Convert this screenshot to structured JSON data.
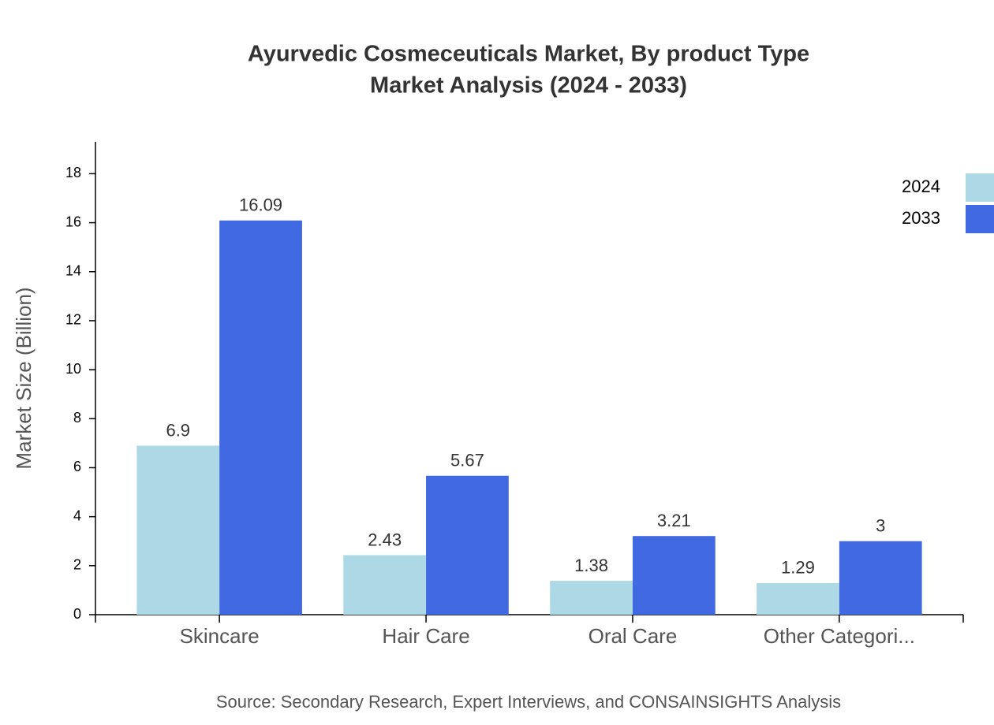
{
  "chart_data": {
    "type": "bar",
    "title": "Ayurvedic Cosmeceuticals Market, By product Type",
    "subtitle": "Market Analysis (2024 - 2033)",
    "y_label": "Market Size (Billion)",
    "source": "Source: Secondary Research, Expert Interviews, and CONSAINSIGHTS Analysis",
    "categories": [
      "Skincare",
      "Hair Care",
      "Oral Care",
      "Other Categori..."
    ],
    "series": [
      {
        "name": "2024",
        "color": "#add8e6",
        "values": [
          6.9,
          2.43,
          1.38,
          1.29
        ]
      },
      {
        "name": "2033",
        "color": "#4169e1",
        "values": [
          16.09,
          5.67,
          3.21,
          3
        ]
      }
    ],
    "ylim": [
      0,
      19.3
    ],
    "yticks": [
      0,
      2,
      4,
      6,
      8,
      10,
      12,
      14,
      16,
      18
    ],
    "legend": "top-right"
  }
}
